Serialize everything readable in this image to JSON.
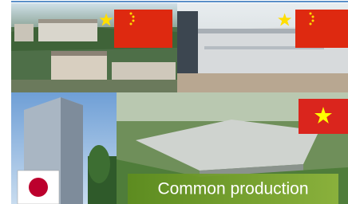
{
  "caption": "Common production"
}
